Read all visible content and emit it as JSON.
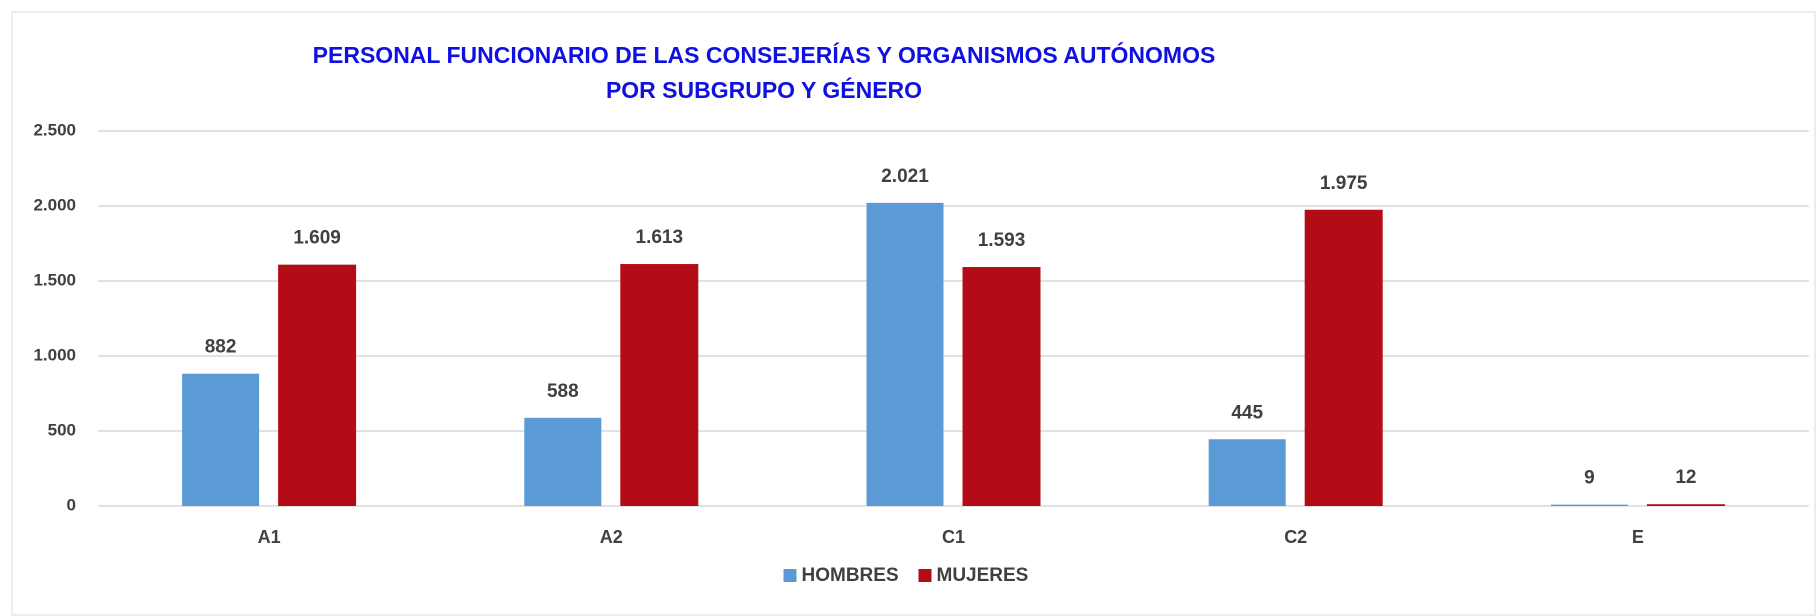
{
  "chart_data": {
    "type": "bar",
    "title": [
      "PERSONAL FUNCIONARIO DE LAS CONSEJERÍAS Y ORGANISMOS AUTÓNOMOS",
      "POR SUBGRUPO Y GÉNERO"
    ],
    "categories": [
      "A1",
      "A2",
      "C1",
      "C2",
      "E"
    ],
    "series": [
      {
        "name": "HOMBRES",
        "color": "#5b9bd5",
        "values": [
          882,
          588,
          2021,
          445,
          9
        ],
        "value_labels": [
          "882",
          "588",
          "2.021",
          "445",
          "9"
        ]
      },
      {
        "name": "MUJERES",
        "color": "#b30c17",
        "values": [
          1609,
          1613,
          1593,
          1975,
          12
        ],
        "value_labels": [
          "1.609",
          "1.613",
          "1.593",
          "1.975",
          "12"
        ]
      }
    ],
    "ylim": [
      0,
      2500
    ],
    "yticks": [
      0,
      500,
      {
        "value": 1000,
        "label": "1.000"
      },
      {
        "value": 1500,
        "label": "1.500"
      },
      {
        "value": 2000,
        "label": "2.000"
      },
      {
        "value": 2500,
        "label": "2.500"
      }
    ],
    "grid": true,
    "legend": "bottom"
  }
}
